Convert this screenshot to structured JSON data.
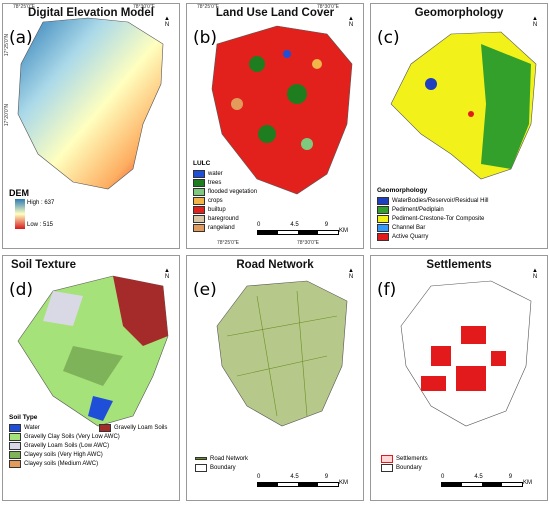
{
  "coords": {
    "lon_left": "78°25'0\"E",
    "lon_right": "78°30'0\"E",
    "lat_top": "17°25'0\"N",
    "lat_mid": "17°20'0\"N",
    "lat_bot": "17°15'0\"N"
  },
  "scale": {
    "t0": "0",
    "t1": "4.5",
    "t2": "9",
    "unit": "KM"
  },
  "north_label": "N",
  "panels": {
    "a": {
      "title": "Digital Elevation Model",
      "label": "(a)",
      "legend": {
        "title": "DEM",
        "high": "High : 637",
        "low": "Low : 515"
      }
    },
    "b": {
      "title": "Land Use Land Cover",
      "label": "(b)",
      "legend": {
        "title": "LULC",
        "items": [
          {
            "label": "water",
            "color": "#1f4fd8"
          },
          {
            "label": "trees",
            "color": "#1e7d1e"
          },
          {
            "label": "flooded vegetation",
            "color": "#7fc97f"
          },
          {
            "label": "crops",
            "color": "#f2b54a"
          },
          {
            "label": "builtup",
            "color": "#e3211c"
          },
          {
            "label": "bareground",
            "color": "#d8c8a8"
          },
          {
            "label": "rangeland",
            "color": "#e39b5b"
          }
        ]
      }
    },
    "c": {
      "title": "Geomorphology",
      "label": "(c)",
      "legend": {
        "title": "Geomorphology",
        "items": [
          {
            "label": "WaterBodies/Reservoir/Residual Hill",
            "color": "#1f3fbf"
          },
          {
            "label": "Pediment/Pediplain",
            "color": "#33a02c"
          },
          {
            "label": "Pediment-Crestone-Tor Composite",
            "color": "#f2f21a"
          },
          {
            "label": "Channel Bar",
            "color": "#3399ff"
          },
          {
            "label": "Active Quarry",
            "color": "#e31a1c"
          }
        ]
      }
    },
    "d": {
      "title": "Soil Texture",
      "label": "(d)",
      "legend": {
        "title": "Soil Type",
        "items": [
          {
            "label": "Water",
            "color": "#1f4fd8"
          },
          {
            "label": "Gravelly Loam Soils",
            "color": "#a52a2a"
          },
          {
            "label": "Gravelly Clay Soils (Very Low AWC)",
            "color": "#a6e27a"
          },
          {
            "label": "Gravelly Loam Soils (Low AWC)",
            "color": "#d9d9e6"
          },
          {
            "label": "Clayey soils (Very High AWC)",
            "color": "#7fb35a"
          },
          {
            "label": "Clayey soils (Medium AWC)",
            "color": "#e39b5b"
          }
        ]
      }
    },
    "e": {
      "title": "Road Network",
      "label": "(e)",
      "legend": {
        "items": [
          {
            "label": "Road Network",
            "color": "#6b8e23"
          },
          {
            "label": "Boundary",
            "color": "#ffffff"
          }
        ]
      }
    },
    "f": {
      "title": "Settlements",
      "label": "(f)",
      "legend": {
        "items": [
          {
            "label": "Settlements",
            "color": "#e31a1c"
          },
          {
            "label": "Boundary",
            "color": "#ffffff"
          }
        ]
      }
    }
  }
}
